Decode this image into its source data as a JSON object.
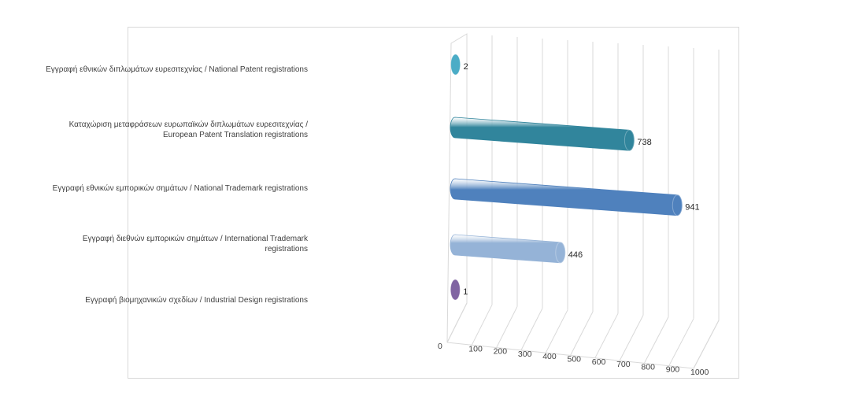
{
  "chart_data": {
    "type": "bar",
    "orientation": "horizontal",
    "style": "3d-cylinder",
    "categories": [
      "Εγγραφή εθνικών  διπλωμάτων ευρεσιτεχνίας  / National Patent registrations",
      "Καταχώριση  μεταφράσεων ευρωπαϊκών  διπλωμάτων ευρεσιτεχνίας  /\nEuropean Patent Translation registrations",
      "Εγγραφή εθνικών  εμπορικών σημάτων  / National Trademark registrations",
      "Εγγραφή διεθνών  εμπορικών σημάτων  / International Trademark\nregistrations",
      "Εγγραφή βιομηχανικών  σχεδίων  / Industrial Design registrations"
    ],
    "values": [
      2,
      738,
      941,
      446,
      1
    ],
    "value_labels": [
      "2",
      "738",
      "941",
      "446",
      "1"
    ],
    "colors": [
      "#4bacc6",
      "#31859c",
      "#4f81bd",
      "#95b3d7",
      "#8064a2"
    ],
    "xlim": [
      0,
      1000
    ],
    "xticks": [
      "0",
      "100",
      "200",
      "300",
      "400",
      "500",
      "600",
      "700",
      "800",
      "900",
      "1000"
    ],
    "grid": true,
    "legend": "none"
  }
}
